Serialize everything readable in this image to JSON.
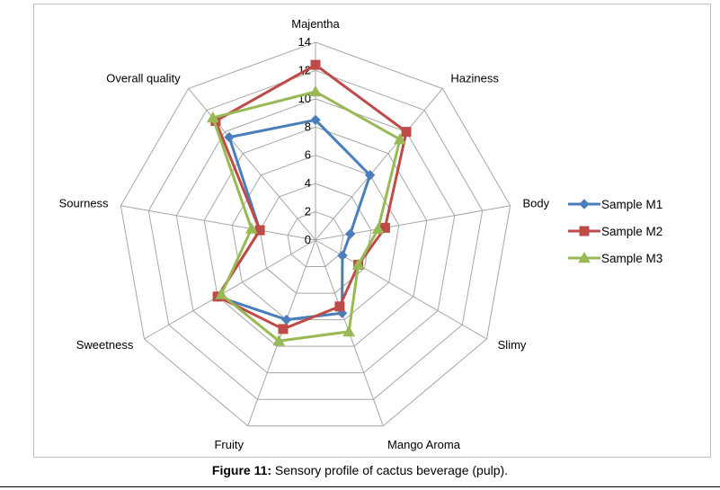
{
  "chart_data": {
    "type": "radar",
    "axes": [
      "Majentha",
      "Haziness",
      "Body",
      "Slimy",
      "Mango Aroma",
      "Fruity",
      "Sweetness",
      "Sourness",
      "Overall quality"
    ],
    "ticks": [
      "0",
      "2",
      "4",
      "6",
      "8",
      "10",
      "12",
      "14"
    ],
    "rmin": 0,
    "rmax": 14,
    "series": [
      {
        "name": "Sample M1",
        "color": "#4a7ebb",
        "marker": "diamond",
        "values": [
          8.5,
          6.0,
          2.5,
          2.2,
          5.5,
          6.0,
          8.0,
          4.0,
          9.5
        ]
      },
      {
        "name": "Sample M2",
        "color": "#be4b48",
        "marker": "square",
        "values": [
          12.4,
          10.0,
          5.0,
          3.5,
          5.0,
          6.7,
          8.0,
          4.0,
          11.0
        ]
      },
      {
        "name": "Sample M3",
        "color": "#98b954",
        "marker": "triangle",
        "values": [
          10.5,
          9.3,
          4.5,
          3.5,
          6.9,
          7.6,
          7.7,
          4.6,
          11.3
        ]
      }
    ]
  },
  "caption": {
    "prefix": "Figure 11:",
    "text": " Sensory profile of cactus beverage (pulp)."
  }
}
